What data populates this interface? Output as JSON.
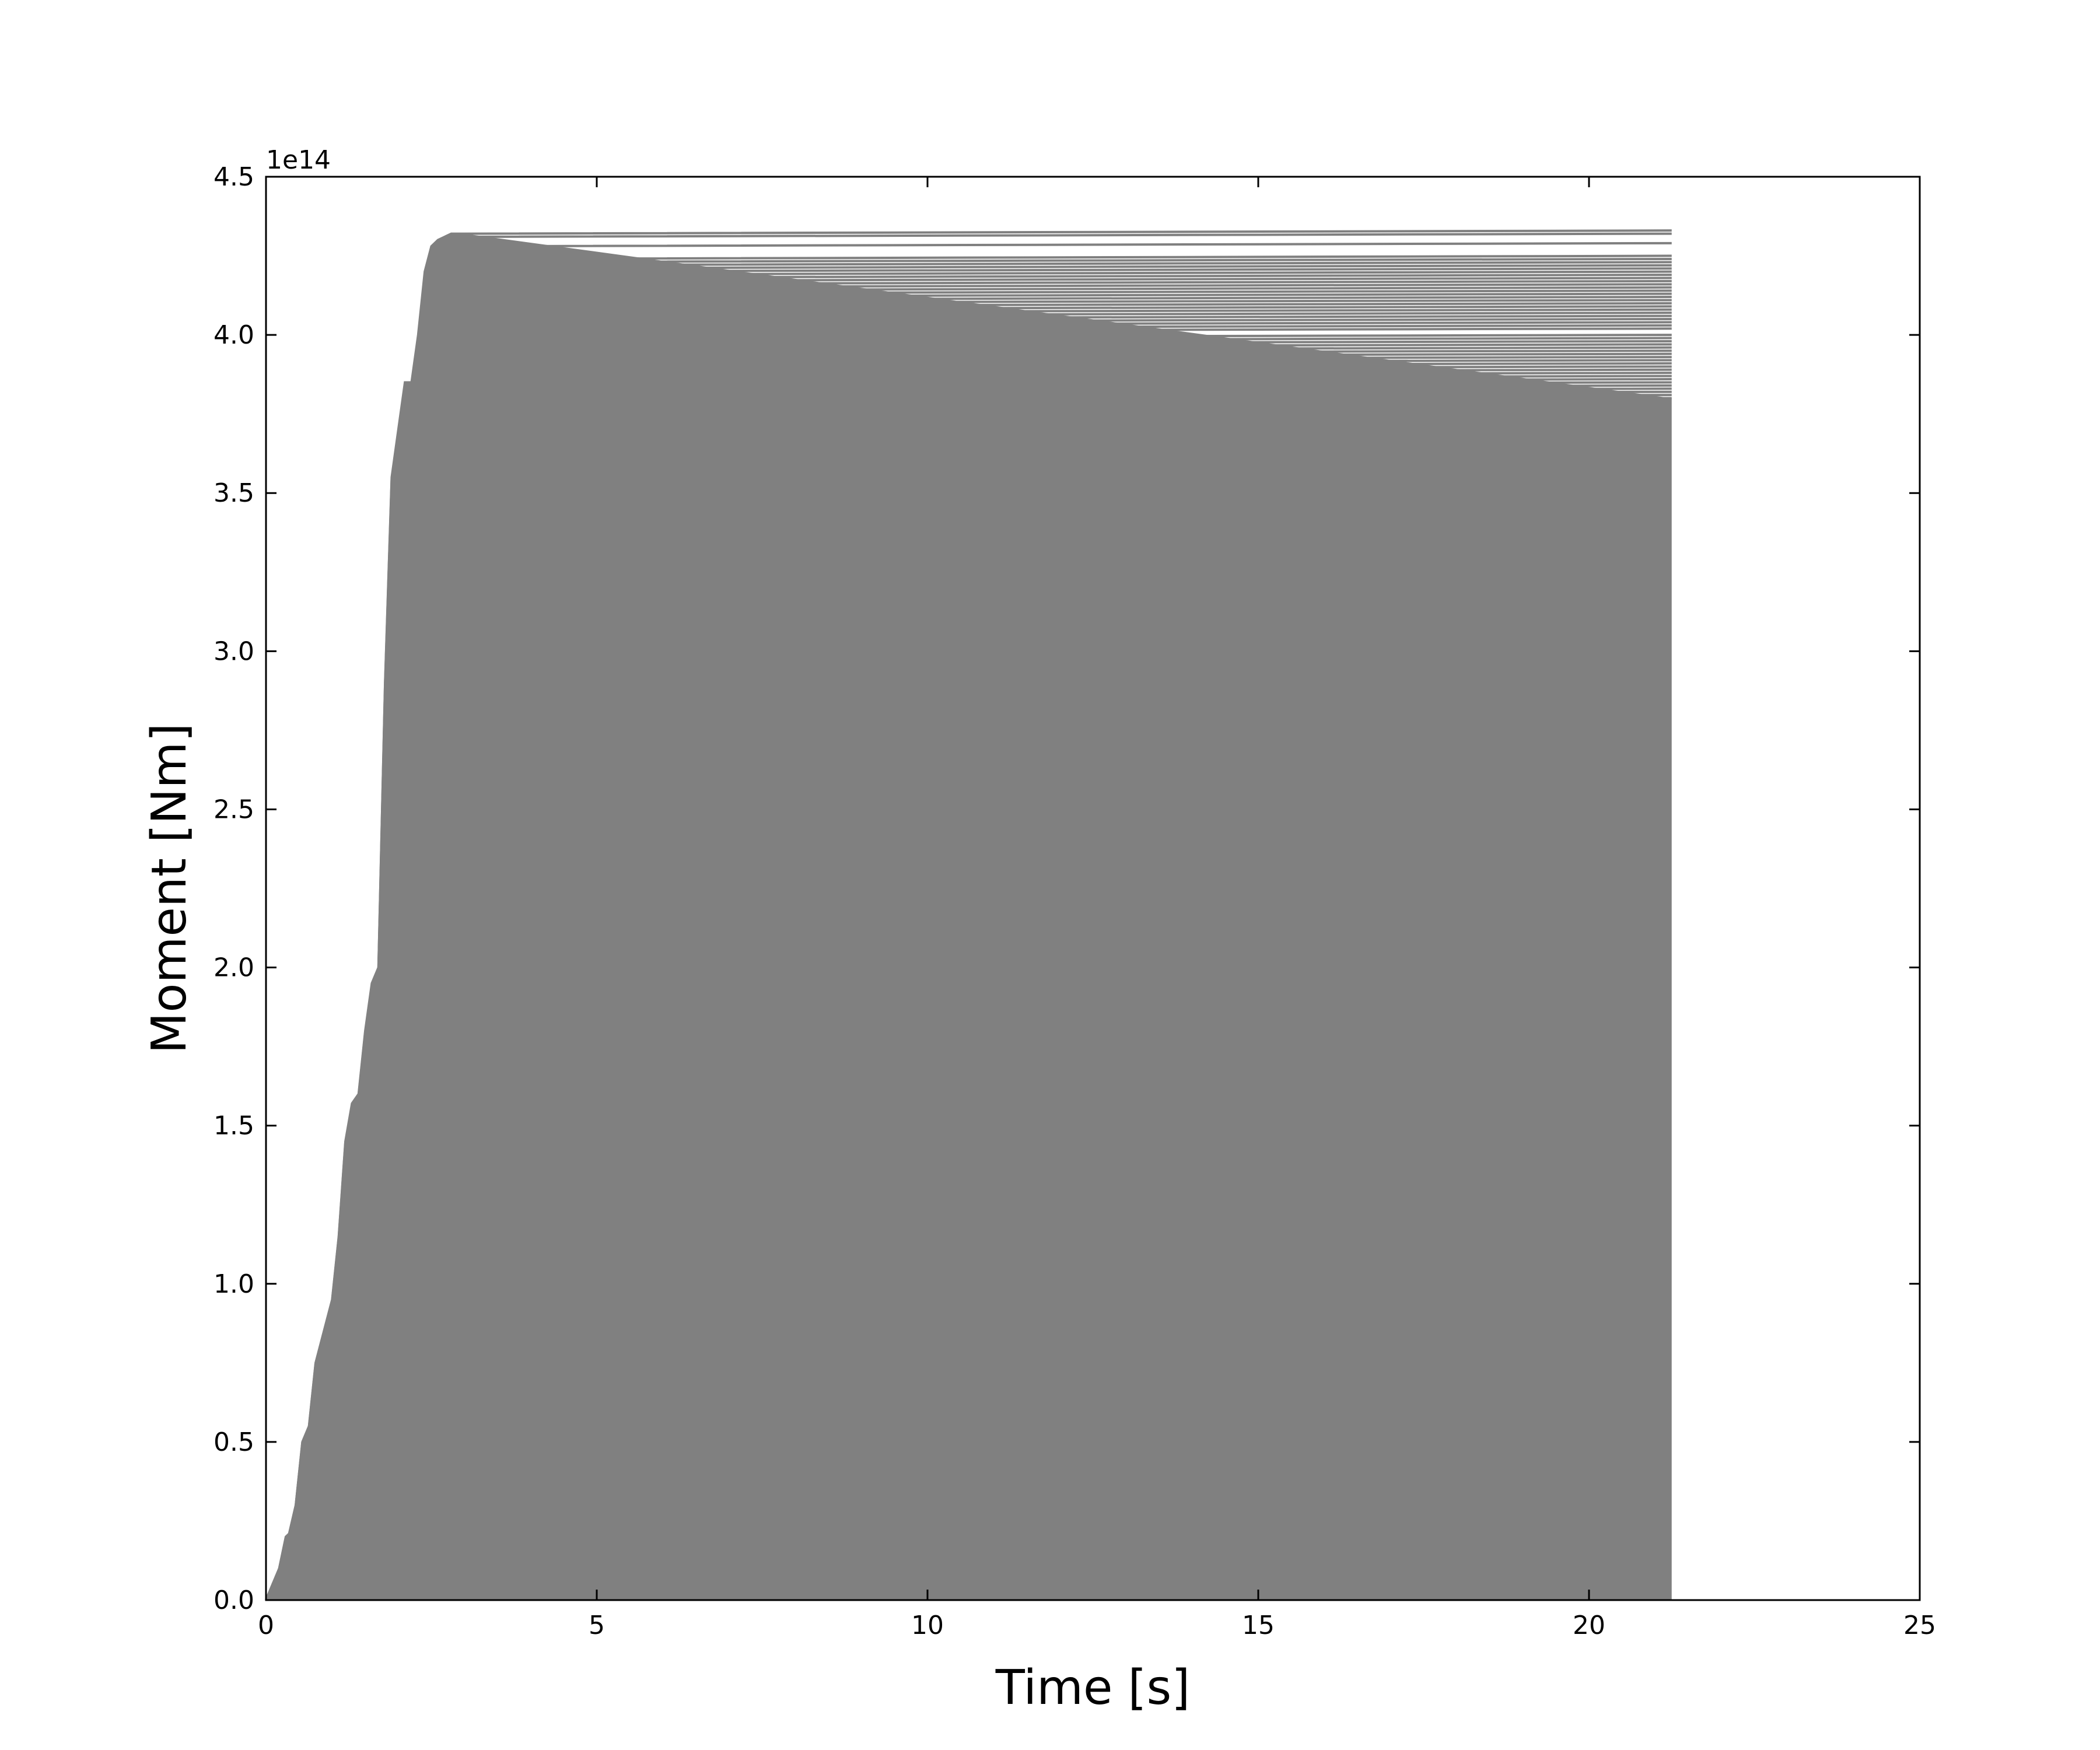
{
  "chart_data": {
    "type": "line",
    "title": "",
    "xlabel": "Time [s]",
    "ylabel": "Moment [Nm]",
    "y_offset_label": "1e14",
    "xlim": [
      0,
      25
    ],
    "ylim": [
      0,
      4.5
    ],
    "x_ticks": [
      0,
      5,
      10,
      15,
      20,
      25
    ],
    "x_tick_labels": [
      "0",
      "5",
      "10",
      "15",
      "20",
      "25"
    ],
    "y_ticks": [
      0.0,
      0.5,
      1.0,
      1.5,
      2.0,
      2.5,
      3.0,
      3.5,
      4.0,
      4.5
    ],
    "y_tick_labels": [
      "0.0",
      "0.5",
      "1.0",
      "1.5",
      "2.0",
      "2.5",
      "3.0",
      "3.5",
      "4.0",
      "4.5"
    ],
    "grid": false,
    "legend": "none",
    "series_color": "#808080",
    "series_end_time": 21.25,
    "envelope_curve": {
      "x": [
        0,
        0.1,
        0.2,
        0.3,
        0.35,
        0.45,
        0.55,
        0.65,
        0.75,
        0.9,
        1.0,
        1.1,
        1.2,
        1.3,
        1.4,
        1.5,
        1.6,
        1.7,
        1.8,
        1.9,
        2.0,
        2.1,
        2.2,
        2.3,
        2.4,
        2.5,
        2.6,
        2.7,
        2.8,
        2.9,
        3.0
      ],
      "y": [
        0,
        0.05,
        0.1,
        0.2,
        0.21,
        0.3,
        0.5,
        0.55,
        0.75,
        0.87,
        0.95,
        1.15,
        1.45,
        1.57,
        1.6,
        1.8,
        1.95,
        2.0,
        2.9,
        3.55,
        3.7,
        3.85,
        3.85,
        4.0,
        4.2,
        4.28,
        4.3,
        4.31,
        4.32,
        4.32,
        4.32
      ]
    },
    "final_moments": [
      4.33,
      4.32,
      4.29,
      4.25,
      4.24,
      4.23,
      4.22,
      4.21,
      4.2,
      4.19,
      4.18,
      4.17,
      4.16,
      4.15,
      4.14,
      4.13,
      4.12,
      4.11,
      4.1,
      4.09,
      4.08,
      4.07,
      4.06,
      4.05,
      4.04,
      4.03,
      4.02,
      4.0,
      3.99,
      3.98,
      3.97,
      3.96,
      3.95,
      3.94,
      3.93,
      3.92,
      3.91,
      3.9,
      3.89,
      3.88,
      3.87,
      3.86,
      3.85,
      3.84,
      3.83,
      3.82,
      3.81,
      3.8
    ]
  }
}
